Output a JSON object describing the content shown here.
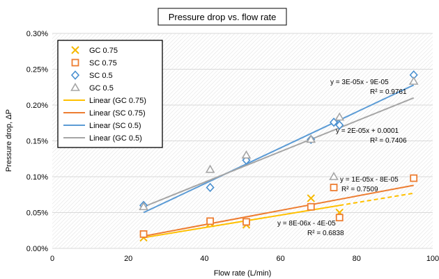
{
  "chart_data": {
    "type": "scatter",
    "title": "Pressure drop vs. flow rate",
    "xlabel": "Flow rate (L/min)",
    "ylabel": "Pressure drop, ΔP",
    "xlim": [
      0,
      100
    ],
    "ylim": [
      0,
      0.003
    ],
    "x_ticks": [
      0,
      20,
      40,
      60,
      80,
      100
    ],
    "x_tick_labels": [
      "0",
      "20",
      "40",
      "60",
      "80",
      "100"
    ],
    "y_ticks": [
      0,
      0.0005,
      0.001,
      0.0015,
      0.002,
      0.0025,
      0.003
    ],
    "y_tick_labels": [
      "0.00%",
      "0.05%",
      "0.10%",
      "0.15%",
      "0.20%",
      "0.25%",
      "0.30%"
    ],
    "plot_background": "diagonal hatch",
    "legend_placement": "top-left",
    "series": [
      {
        "name": "GC 0.75",
        "marker": "x",
        "color": "#f5b800",
        "x": [
          24,
          41.5,
          51,
          68,
          75.5
        ],
        "y": [
          0.00015,
          0.00035,
          0.00033,
          0.0007,
          0.0005
        ]
      },
      {
        "name": "SC 0.75",
        "marker": "square",
        "color": "#ed7d31",
        "x": [
          24,
          41.5,
          51,
          68,
          74,
          75.5,
          95
        ],
        "y": [
          0.0002,
          0.00038,
          0.00037,
          0.00058,
          0.00085,
          0.00043,
          0.00098
        ]
      },
      {
        "name": "SC 0.5",
        "marker": "diamond",
        "color": "#4a90d0",
        "x": [
          24,
          41.5,
          51,
          68,
          74,
          75.5,
          95
        ],
        "y": [
          0.0006,
          0.00085,
          0.00123,
          0.00152,
          0.00176,
          0.00172,
          0.00242
        ]
      },
      {
        "name": "GC 0.5",
        "marker": "triangle",
        "color": "#a5a5a5",
        "x": [
          24,
          41.5,
          51,
          68,
          74,
          75.5,
          95
        ],
        "y": [
          0.00058,
          0.0011,
          0.0013,
          0.00152,
          0.001,
          0.00183,
          0.00233
        ]
      }
    ],
    "trendlines": [
      {
        "name": "Linear (GC 0.75)",
        "color": "#ffc000",
        "x": [
          24,
          95
        ],
        "y": [
          0.00015,
          0.00077
        ],
        "dashed_from_x": 75.5
      },
      {
        "name": "Linear (SC 0.75)",
        "color": "#ed7d31",
        "x": [
          24,
          95
        ],
        "y": [
          0.00017,
          0.00088
        ]
      },
      {
        "name": "Linear (SC 0.5)",
        "color": "#5b9bd5",
        "x": [
          24,
          95
        ],
        "y": [
          0.0005,
          0.00228
        ]
      },
      {
        "name": "Linear (GC 0.5)",
        "color": "#a5a5a5",
        "x": [
          24,
          95
        ],
        "y": [
          0.00058,
          0.0021
        ]
      }
    ],
    "equations": [
      {
        "line1": "y = 3E-05x - 9E-05",
        "line2": "R² = 0.9761"
      },
      {
        "line1": "y = 2E-05x + 0.0001",
        "line2": "R² = 0.7406"
      },
      {
        "line1": "y = 1E-05x - 8E-05",
        "line2": "R² = 0.7509"
      },
      {
        "line1": "y = 8E-06x - 4E-05",
        "line2": "R² = 0.6838"
      }
    ]
  }
}
